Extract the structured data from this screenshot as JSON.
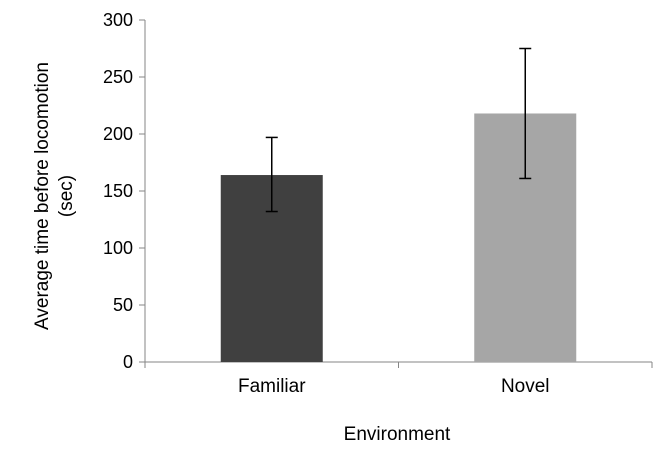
{
  "chart_data": {
    "type": "bar",
    "title": "",
    "xlabel": "Environment",
    "ylabel_lines": [
      "Average time before locomotion",
      "(sec)"
    ],
    "categories": [
      "Familiar",
      "Novel"
    ],
    "values": [
      164,
      218
    ],
    "error_low": [
      132,
      161
    ],
    "error_high": [
      197,
      275
    ],
    "colors": [
      "#404040",
      "#a6a6a6"
    ],
    "ylim": [
      0,
      300
    ],
    "yticks": [
      "0",
      "50",
      "100",
      "150",
      "200",
      "250",
      "300"
    ],
    "grid": false,
    "legend": "none"
  }
}
